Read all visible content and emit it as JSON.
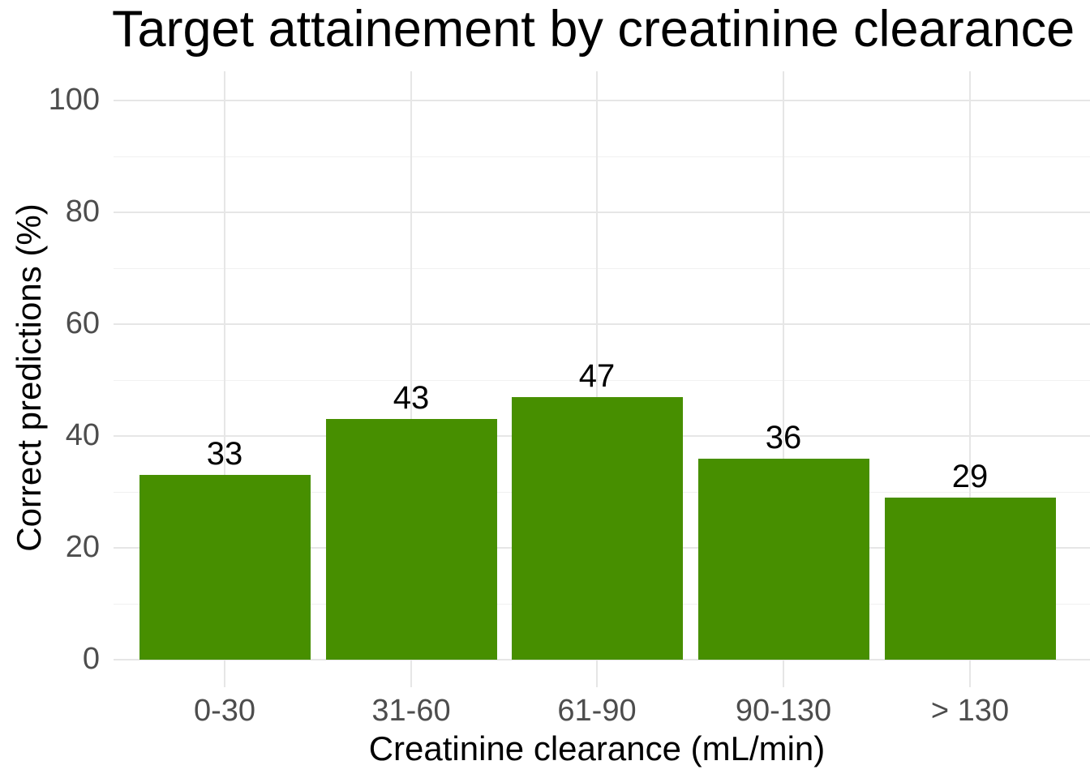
{
  "chart_data": {
    "type": "bar",
    "title": "Target attainement by creatinine clearance",
    "xlabel": "Creatinine clearance (mL/min)",
    "ylabel": "Correct predictions (%)",
    "categories": [
      "0-30",
      "31-60",
      "61-90",
      "90-130",
      "> 130"
    ],
    "values": [
      33,
      43,
      47,
      36,
      29
    ],
    "bar_labels": [
      "33",
      "43",
      "47",
      "36",
      "29"
    ],
    "ylim": [
      0,
      100
    ],
    "yticks": [
      0,
      20,
      40,
      60,
      80,
      100
    ],
    "yticks_minor": [
      10,
      30,
      50,
      70,
      90
    ],
    "grid": true,
    "legend": false,
    "legend_position": "none",
    "bar_color": "#478F00",
    "tick_label_color": "#4d4d4d",
    "title_color": "#000000",
    "axis_title_color": "#000000",
    "grid_major_color": "#e6e6e6",
    "grid_minor_color": "#f1f1f1",
    "panel_background": "#ffffff"
  }
}
